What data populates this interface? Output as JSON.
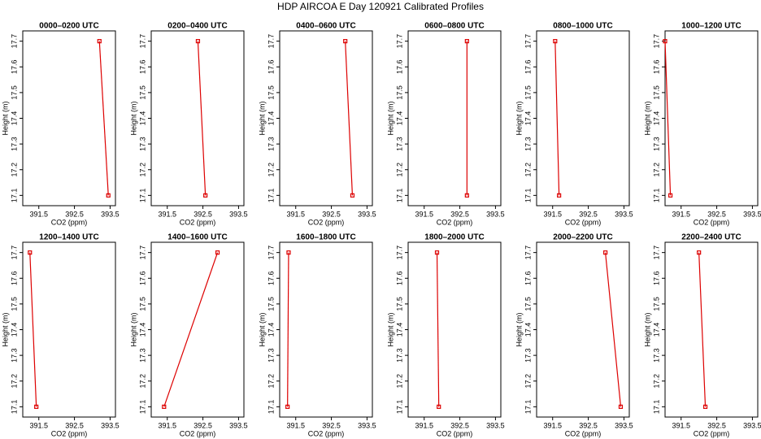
{
  "title": "HDP AIRCOA E  Day 120921  Calibrated Profiles",
  "chart_data": [
    {
      "type": "line",
      "title": "0000–0200 UTC",
      "x": [
        393.2,
        393.45
      ],
      "values": [
        17.7,
        17.1
      ],
      "color": "#dd0000",
      "xlim": [
        391.05,
        393.65
      ],
      "ylim": [
        17.06,
        17.74
      ],
      "xticks": [
        391.5,
        392.5,
        393.5
      ],
      "yticks": [
        17.1,
        17.2,
        17.3,
        17.4,
        17.5,
        17.6,
        17.7
      ],
      "xlabel": "CO2 (ppm)",
      "ylabel": "Height (m)"
    },
    {
      "type": "line",
      "title": "0200–0400 UTC",
      "x": [
        392.36,
        392.57
      ],
      "values": [
        17.7,
        17.1
      ],
      "color": "#dd0000",
      "xlim": [
        391.05,
        393.65
      ],
      "ylim": [
        17.06,
        17.74
      ],
      "xticks": [
        391.5,
        392.5,
        393.5
      ],
      "yticks": [
        17.1,
        17.2,
        17.3,
        17.4,
        17.5,
        17.6,
        17.7
      ],
      "xlabel": "CO2 (ppm)",
      "ylabel": "Height (m)"
    },
    {
      "type": "line",
      "title": "0400–0600 UTC",
      "x": [
        392.89,
        393.09
      ],
      "values": [
        17.7,
        17.1
      ],
      "color": "#dd0000",
      "xlim": [
        391.05,
        393.65
      ],
      "ylim": [
        17.06,
        17.74
      ],
      "xticks": [
        391.5,
        392.5,
        393.5
      ],
      "yticks": [
        17.1,
        17.2,
        17.3,
        17.4,
        17.5,
        17.6,
        17.7
      ],
      "xlabel": "CO2 (ppm)",
      "ylabel": "Height (m)"
    },
    {
      "type": "line",
      "title": "0600–0800 UTC",
      "x": [
        392.7,
        392.7
      ],
      "values": [
        17.7,
        17.1
      ],
      "color": "#dd0000",
      "xlim": [
        391.05,
        393.65
      ],
      "ylim": [
        17.06,
        17.74
      ],
      "xticks": [
        391.5,
        392.5,
        393.5
      ],
      "yticks": [
        17.1,
        17.2,
        17.3,
        17.4,
        17.5,
        17.6,
        17.7
      ],
      "xlabel": "CO2 (ppm)",
      "ylabel": "Height (m)"
    },
    {
      "type": "line",
      "title": "0800–1000 UTC",
      "x": [
        391.57,
        391.68
      ],
      "values": [
        17.7,
        17.1
      ],
      "color": "#dd0000",
      "xlim": [
        391.05,
        393.65
      ],
      "ylim": [
        17.06,
        17.74
      ],
      "xticks": [
        391.5,
        392.5,
        393.5
      ],
      "yticks": [
        17.1,
        17.2,
        17.3,
        17.4,
        17.5,
        17.6,
        17.7
      ],
      "xlabel": "CO2 (ppm)",
      "ylabel": "Height (m)"
    },
    {
      "type": "line",
      "title": "1000–1200 UTC",
      "x": [
        391.05,
        391.2
      ],
      "values": [
        17.7,
        17.1
      ],
      "color": "#dd0000",
      "xlim": [
        391.05,
        393.65
      ],
      "ylim": [
        17.06,
        17.74
      ],
      "xticks": [
        391.5,
        392.5,
        393.5
      ],
      "yticks": [
        17.1,
        17.2,
        17.3,
        17.4,
        17.5,
        17.6,
        17.7
      ],
      "xlabel": "CO2 (ppm)",
      "ylabel": "Height (m)"
    },
    {
      "type": "line",
      "title": "1200–1400 UTC",
      "x": [
        391.25,
        391.43
      ],
      "values": [
        17.7,
        17.1
      ],
      "color": "#dd0000",
      "xlim": [
        391.05,
        393.65
      ],
      "ylim": [
        17.06,
        17.74
      ],
      "xticks": [
        391.5,
        392.5,
        393.5
      ],
      "yticks": [
        17.1,
        17.2,
        17.3,
        17.4,
        17.5,
        17.6,
        17.7
      ],
      "xlabel": "CO2 (ppm)",
      "ylabel": "Height (m)"
    },
    {
      "type": "line",
      "title": "1400–1600 UTC",
      "x": [
        392.91,
        391.41
      ],
      "values": [
        17.7,
        17.1
      ],
      "color": "#dd0000",
      "xlim": [
        391.05,
        393.65
      ],
      "ylim": [
        17.06,
        17.74
      ],
      "xticks": [
        391.5,
        392.5,
        393.5
      ],
      "yticks": [
        17.1,
        17.2,
        17.3,
        17.4,
        17.5,
        17.6,
        17.7
      ],
      "xlabel": "CO2 (ppm)",
      "ylabel": "Height (m)"
    },
    {
      "type": "line",
      "title": "1600–1800 UTC",
      "x": [
        391.3,
        391.27
      ],
      "values": [
        17.7,
        17.1
      ],
      "color": "#dd0000",
      "xlim": [
        391.05,
        393.65
      ],
      "ylim": [
        17.06,
        17.74
      ],
      "xticks": [
        391.5,
        392.5,
        393.5
      ],
      "yticks": [
        17.1,
        17.2,
        17.3,
        17.4,
        17.5,
        17.6,
        17.7
      ],
      "xlabel": "CO2 (ppm)",
      "ylabel": "Height (m)"
    },
    {
      "type": "line",
      "title": "1800–2000 UTC",
      "x": [
        391.86,
        391.91
      ],
      "values": [
        17.7,
        17.1
      ],
      "color": "#dd0000",
      "xlim": [
        391.05,
        393.65
      ],
      "ylim": [
        17.06,
        17.74
      ],
      "xticks": [
        391.5,
        392.5,
        393.5
      ],
      "yticks": [
        17.1,
        17.2,
        17.3,
        17.4,
        17.5,
        17.6,
        17.7
      ],
      "xlabel": "CO2 (ppm)",
      "ylabel": "Height (m)"
    },
    {
      "type": "line",
      "title": "2000–2200 UTC",
      "x": [
        392.98,
        393.41
      ],
      "values": [
        17.7,
        17.1
      ],
      "color": "#dd0000",
      "xlim": [
        391.05,
        393.65
      ],
      "ylim": [
        17.06,
        17.74
      ],
      "xticks": [
        391.5,
        392.5,
        393.5
      ],
      "yticks": [
        17.1,
        17.2,
        17.3,
        17.4,
        17.5,
        17.6,
        17.7
      ],
      "xlabel": "CO2 (ppm)",
      "ylabel": "Height (m)"
    },
    {
      "type": "line",
      "title": "2200–2400 UTC",
      "x": [
        392.0,
        392.18
      ],
      "values": [
        17.7,
        17.1
      ],
      "color": "#dd0000",
      "xlim": [
        391.05,
        393.65
      ],
      "ylim": [
        17.06,
        17.74
      ],
      "xticks": [
        391.5,
        392.5,
        393.5
      ],
      "yticks": [
        17.1,
        17.2,
        17.3,
        17.4,
        17.5,
        17.6,
        17.7
      ],
      "xlabel": "CO2 (ppm)",
      "ylabel": "Height (m)"
    }
  ]
}
